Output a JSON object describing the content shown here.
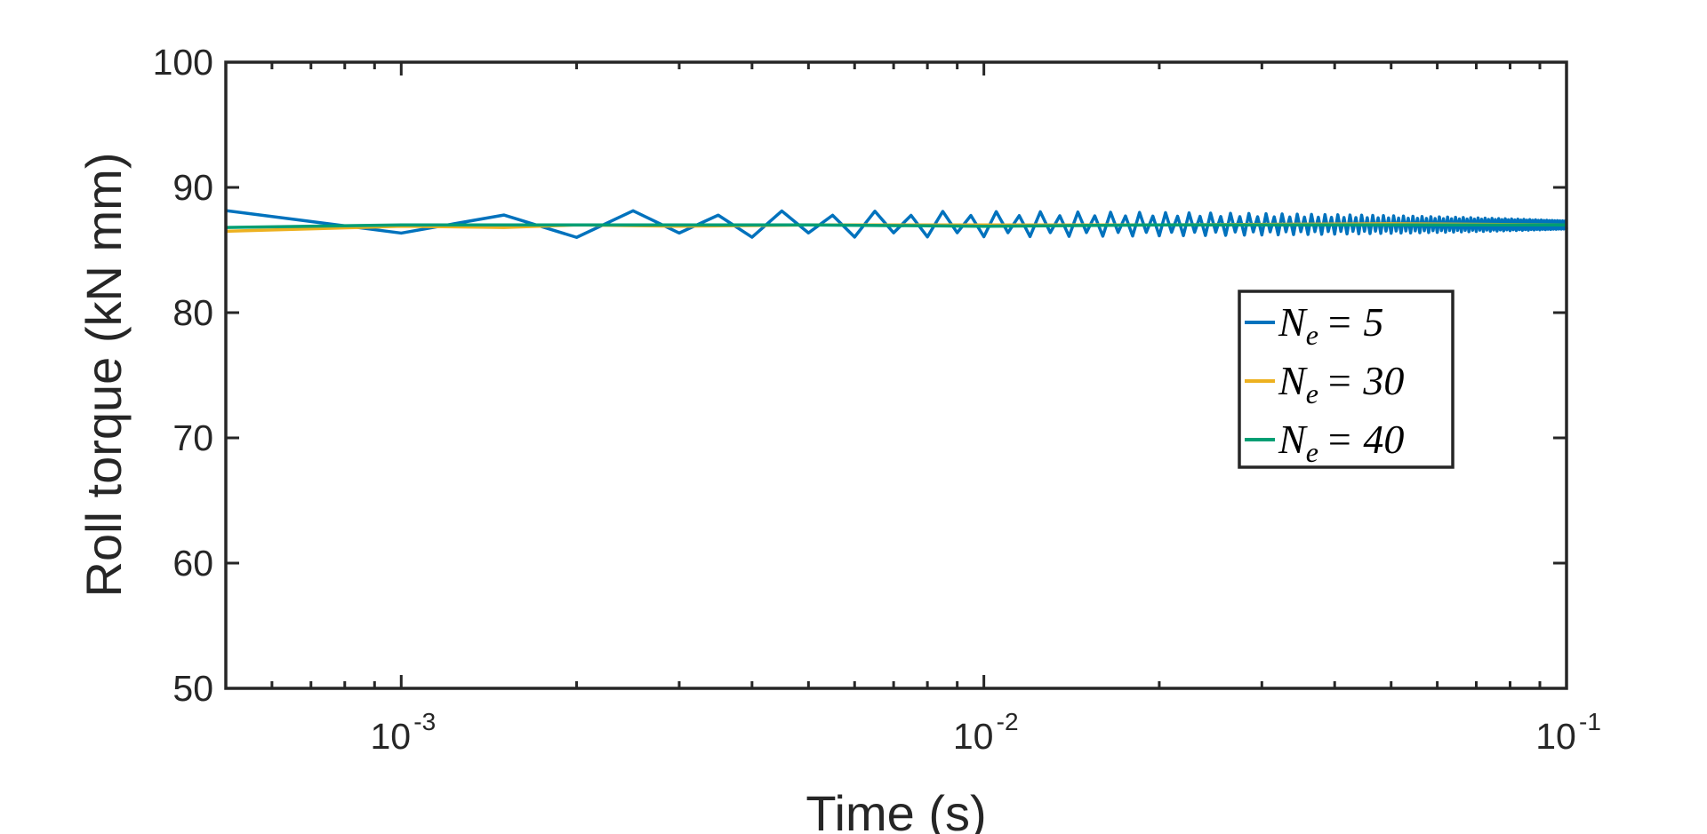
{
  "chart_data": {
    "type": "line",
    "title": "",
    "xlabel": "Time (s)",
    "ylabel": "Roll torque (kN mm)",
    "xscale": "log",
    "xlim": [
      0.0005,
      0.1
    ],
    "ylim": [
      50,
      100
    ],
    "yticks": [
      "50",
      "60",
      "70",
      "80",
      "90",
      "100"
    ],
    "xticks": [
      {
        "value": 0.001,
        "base": "10",
        "exp": "-3"
      },
      {
        "value": 0.01,
        "base": "10",
        "exp": "-2"
      },
      {
        "value": 0.1,
        "base": "10",
        "exp": "-1"
      }
    ],
    "grid": false,
    "legend_position": "right",
    "series": [
      {
        "name": "N_e = 5",
        "legend": {
          "sym": "N",
          "sub": "e",
          "rhs": "= 5"
        },
        "color": "#0072BD",
        "model": {
          "type": "oscillating",
          "start": 0.0005,
          "period": 0.0005,
          "base": 87.0,
          "amplitude": 0.9,
          "amp_start": 0.2
        }
      },
      {
        "name": "N_e = 30",
        "legend": {
          "sym": "N",
          "sub": "e",
          "rhs": "= 30"
        },
        "color": "#EDB120",
        "x": [
          0.0005,
          0.001,
          0.0015,
          0.002,
          0.003,
          0.005,
          0.01,
          0.02,
          0.05,
          0.1
        ],
        "y": [
          86.5,
          86.9,
          86.8,
          87.0,
          86.9,
          87.0,
          87.0,
          87.0,
          87.1,
          87.0
        ]
      },
      {
        "name": "N_e = 40",
        "legend": {
          "sym": "N",
          "sub": "e",
          "rhs": "= 40"
        },
        "color": "#009E73",
        "x": [
          0.0005,
          0.001,
          0.002,
          0.005,
          0.01,
          0.02,
          0.05,
          0.1
        ],
        "y": [
          86.8,
          87.0,
          87.0,
          87.0,
          86.9,
          87.0,
          87.0,
          87.0
        ]
      }
    ]
  }
}
